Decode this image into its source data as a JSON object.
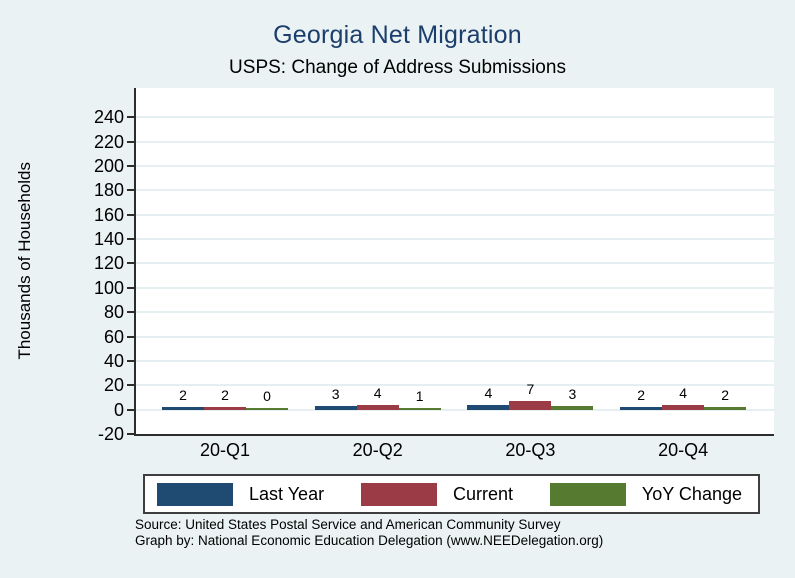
{
  "title": "Georgia Net Migration",
  "subtitle": "USPS: Change of Address Submissions",
  "colors": {
    "page_background": "#eaf2f3",
    "plot_background": "#ffffff",
    "gridline": "#e5eff2",
    "axis": "#2d2d2d",
    "title_text": "#1b3e6c",
    "navy": "#1f4a72",
    "maroon": "#9a3b45",
    "green": "#567a30"
  },
  "chart_data": {
    "type": "bar",
    "title": "Georgia Net Migration",
    "subtitle": "USPS: Change of Address Submissions",
    "xlabel": "",
    "ylabel": "Thousands of Households",
    "categories": [
      "20-Q1",
      "20-Q2",
      "20-Q3",
      "20-Q4"
    ],
    "series": [
      {
        "name": "Last Year",
        "color_key": "navy",
        "values": [
          2,
          3,
          4,
          2
        ]
      },
      {
        "name": "Current",
        "color_key": "maroon",
        "values": [
          2,
          4,
          7,
          4
        ]
      },
      {
        "name": "YoY Change",
        "color_key": "green",
        "values": [
          0,
          1,
          3,
          2
        ]
      }
    ],
    "bar_value_labels": [
      [
        2,
        2,
        0
      ],
      [
        3,
        4,
        1
      ],
      [
        4,
        7,
        3
      ],
      [
        2,
        4,
        2
      ]
    ],
    "ylim": [
      -20,
      264
    ],
    "yticks": [
      -20,
      0,
      20,
      40,
      60,
      80,
      100,
      120,
      140,
      160,
      180,
      200,
      220,
      240
    ],
    "grid": true,
    "legend_position": "bottom"
  },
  "legend": {
    "items": [
      {
        "label": "Last Year",
        "color_key": "navy"
      },
      {
        "label": "Current",
        "color_key": "maroon"
      },
      {
        "label": "YoY Change",
        "color_key": "green"
      }
    ]
  },
  "footer": {
    "source_line": "Source: United States Postal Service and American Community Survey",
    "credit_line": "Graph by: National Economic Education Delegation (www.NEEDelegation.org)"
  }
}
